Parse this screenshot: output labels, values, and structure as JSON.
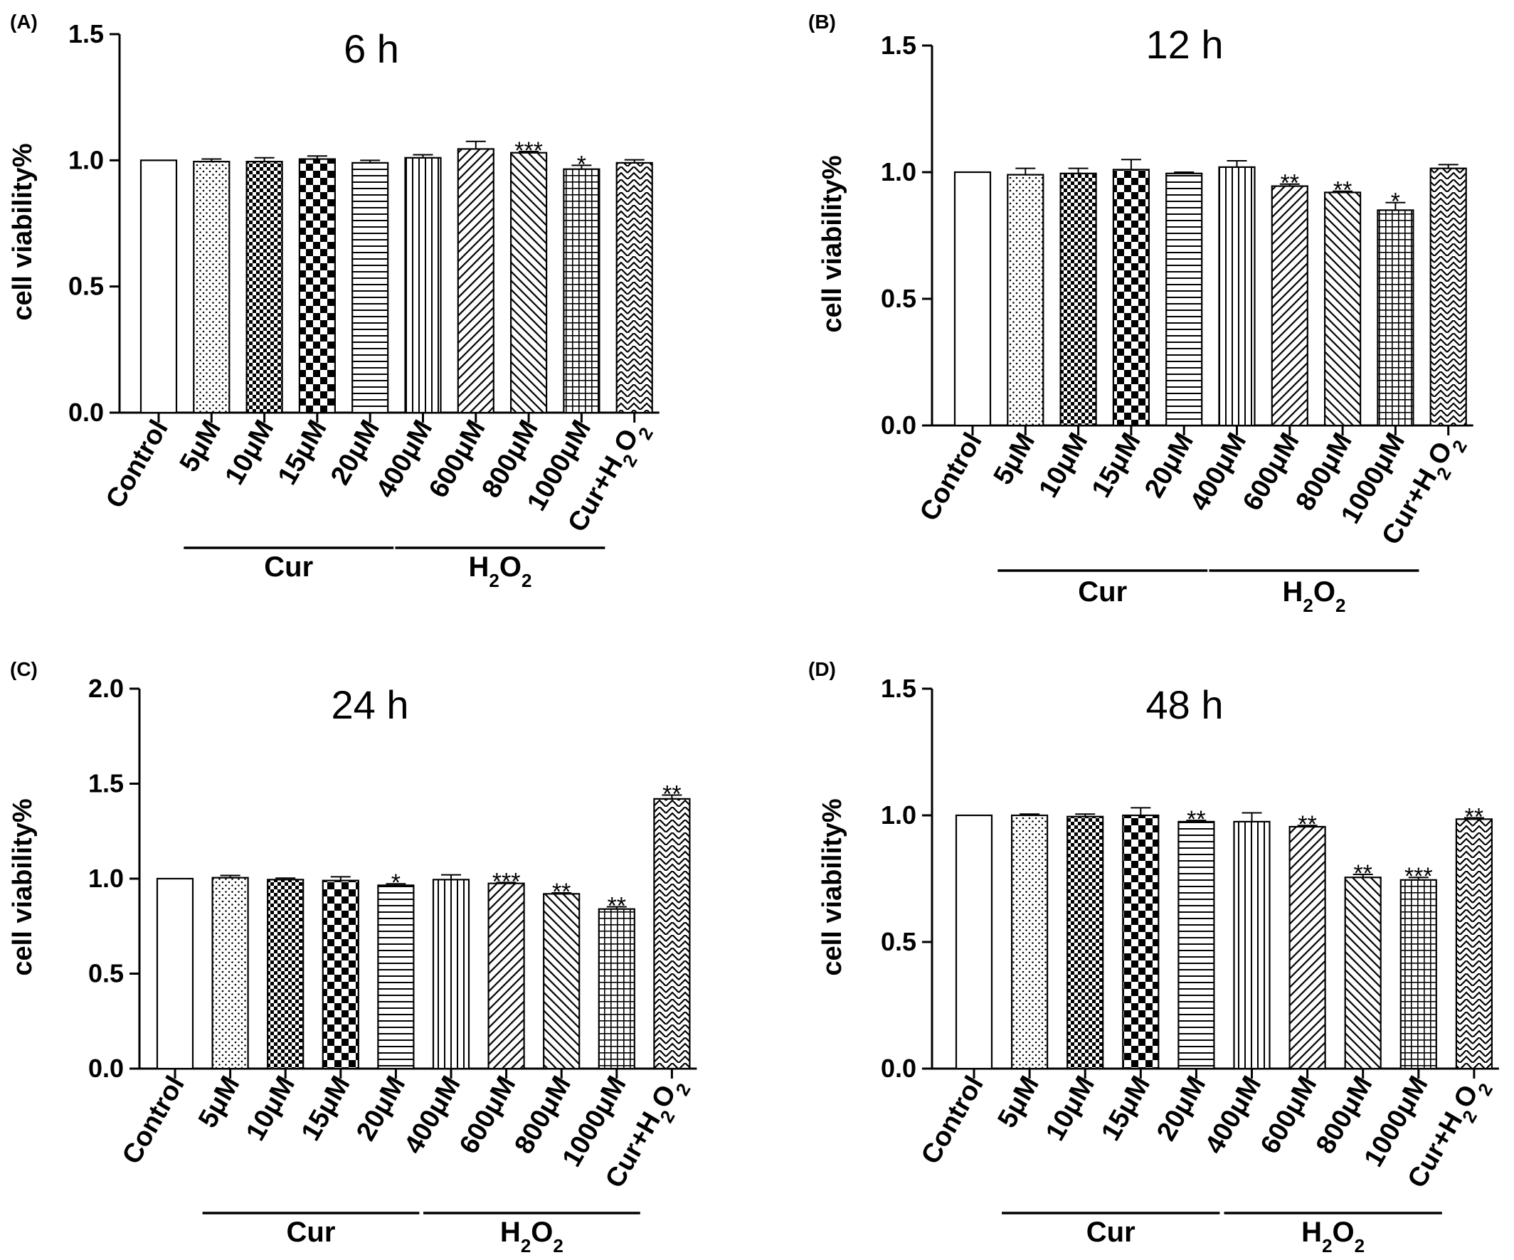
{
  "chart_data": [
    {
      "type": "bar",
      "panel": "(A)",
      "title": "6 h",
      "ylabel": "cell viability%",
      "ylim": [
        0,
        1.5
      ],
      "yticks": [
        "0.0",
        "0.5",
        "1.0",
        "1.5"
      ],
      "categories": [
        "Control",
        "5μM",
        "10μM",
        "15μM",
        "20μM",
        "400μM",
        "600μM",
        "800μM",
        "1000μM",
        "Cur+H₂O₂"
      ],
      "values": [
        1.0,
        0.995,
        0.995,
        1.005,
        0.99,
        1.01,
        1.045,
        1.03,
        0.965,
        0.99
      ],
      "errors": [
        0,
        0.01,
        0.015,
        0.012,
        0.01,
        0.012,
        0.03,
        0.005,
        0.015,
        0.012
      ],
      "significance": [
        "",
        "",
        "",
        "",
        "",
        "",
        "",
        "***",
        "*",
        ""
      ],
      "groups": [
        {
          "label": "Cur"
        },
        {
          "label": "H₂O₂"
        }
      ]
    },
    {
      "type": "bar",
      "panel": "(B)",
      "title": "12 h",
      "ylabel": "cell viability%",
      "ylim": [
        0,
        1.5
      ],
      "yticks": [
        "0.0",
        "0.5",
        "1.0",
        "1.5"
      ],
      "categories": [
        "Control",
        "5μM",
        "10μM",
        "15μM",
        "20μM",
        "400μM",
        "600μM",
        "800μM",
        "1000μM",
        "Cur+H₂O₂"
      ],
      "values": [
        1.0,
        0.99,
        0.995,
        1.01,
        0.995,
        1.02,
        0.945,
        0.92,
        0.85,
        1.015
      ],
      "errors": [
        0,
        0.025,
        0.02,
        0.04,
        0.005,
        0.025,
        0.008,
        0.005,
        0.03,
        0.015
      ],
      "significance": [
        "",
        "",
        "",
        "",
        "",
        "",
        "**",
        "**",
        "*",
        ""
      ],
      "groups": [
        {
          "label": "Cur"
        },
        {
          "label": "H₂O₂"
        }
      ]
    },
    {
      "type": "bar",
      "panel": "(C)",
      "title": "24 h",
      "ylabel": "cell viability%",
      "ylim": [
        0,
        2.0
      ],
      "yticks": [
        "0.0",
        "0.5",
        "1.0",
        "1.5",
        "2.0"
      ],
      "categories": [
        "Control",
        "5μM",
        "10μM",
        "15μM",
        "20μM",
        "400μM",
        "600μM",
        "800μM",
        "1000μM",
        "Cur+H₂O₂"
      ],
      "values": [
        1.0,
        1.005,
        0.995,
        0.99,
        0.965,
        0.995,
        0.975,
        0.92,
        0.84,
        1.42
      ],
      "errors": [
        0,
        0.012,
        0.008,
        0.02,
        0.008,
        0.025,
        0.005,
        0.005,
        0.012,
        0.02
      ],
      "significance": [
        "",
        "",
        "",
        "",
        "*",
        "",
        "***",
        "**",
        "**",
        "**"
      ],
      "groups": [
        {
          "label": "Cur"
        },
        {
          "label": "H₂O₂"
        }
      ]
    },
    {
      "type": "bar",
      "panel": "(D)",
      "title": "48 h",
      "ylabel": "cell viability%",
      "ylim": [
        0,
        1.5
      ],
      "yticks": [
        "0.0",
        "0.5",
        "1.0",
        "1.5"
      ],
      "categories": [
        "Control",
        "5μM",
        "10μM",
        "15μM",
        "20μM",
        "400μM",
        "600μM",
        "800μM",
        "1000μM",
        "Cur+H₂O₂"
      ],
      "values": [
        1.0,
        1.0,
        0.995,
        1.0,
        0.975,
        0.975,
        0.955,
        0.755,
        0.745,
        0.985
      ],
      "errors": [
        0,
        0.005,
        0.01,
        0.03,
        0.005,
        0.035,
        0.005,
        0.012,
        0.01,
        0.005
      ],
      "significance": [
        "",
        "",
        "",
        "",
        "**",
        "",
        "**",
        "**",
        "***",
        "**"
      ],
      "groups": [
        {
          "label": "Cur"
        },
        {
          "label": "H₂O₂"
        }
      ]
    }
  ],
  "style": {
    "bar_fill": "#ffffff",
    "ink": "#000000",
    "patterns": [
      "plain",
      "dots",
      "checker-fine",
      "checker-large",
      "horizontal-lines",
      "vertical-lines",
      "diagonal-up",
      "diagonal-down",
      "grid",
      "zigzag"
    ]
  }
}
